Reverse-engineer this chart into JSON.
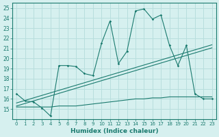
{
  "x": [
    0,
    1,
    2,
    3,
    4,
    5,
    6,
    7,
    8,
    9,
    10,
    11,
    12,
    13,
    14,
    15,
    16,
    17,
    18,
    19,
    20,
    21,
    22,
    23
  ],
  "main_line": [
    16.5,
    15.8,
    15.7,
    15.1,
    14.3,
    19.3,
    19.3,
    19.2,
    18.5,
    18.3,
    21.5,
    23.7,
    19.5,
    20.7,
    24.7,
    24.9,
    23.9,
    24.3,
    21.3,
    19.3,
    21.3,
    16.5,
    16.0,
    16.0
  ],
  "flat_line": [
    15.2,
    15.2,
    15.2,
    15.2,
    15.2,
    15.3,
    15.3,
    15.3,
    15.4,
    15.5,
    15.6,
    15.7,
    15.8,
    15.9,
    16.0,
    16.0,
    16.1,
    16.1,
    16.2,
    16.2,
    16.2,
    16.2,
    16.2,
    16.2
  ],
  "trend_low": [
    15.3,
    15.55,
    15.8,
    16.05,
    16.3,
    16.55,
    16.8,
    17.05,
    17.3,
    17.55,
    17.8,
    18.05,
    18.3,
    18.55,
    18.8,
    19.05,
    19.3,
    19.55,
    19.8,
    20.05,
    20.3,
    20.55,
    20.8,
    21.05
  ],
  "trend_high": [
    15.6,
    15.85,
    16.1,
    16.35,
    16.6,
    16.85,
    17.1,
    17.35,
    17.6,
    17.85,
    18.1,
    18.35,
    18.6,
    18.85,
    19.1,
    19.35,
    19.6,
    19.85,
    20.1,
    20.35,
    20.6,
    20.85,
    21.1,
    21.35
  ],
  "color": "#1a7a6e",
  "bg_color": "#d6f0ef",
  "grid_color": "#b8dedd",
  "xlabel": "Humidex (Indice chaleur)",
  "ylim": [
    14,
    25.5
  ],
  "xlim": [
    -0.5,
    23.5
  ]
}
